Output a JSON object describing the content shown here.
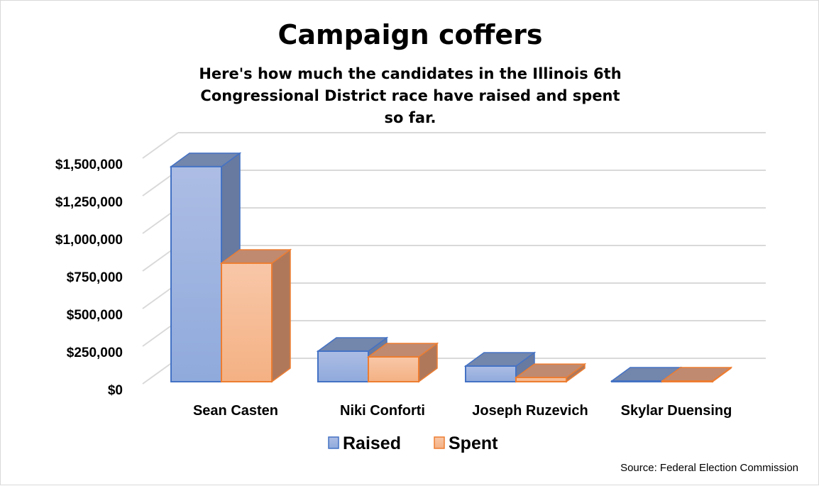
{
  "chart_data": {
    "type": "bar",
    "title": "Campaign coffers",
    "subtitle": "Here's how much the candidates in the Illinois 6th Congressional District race have raised and spent so far.",
    "categories": [
      "Sean Casten",
      "Niki Conforti",
      "Joseph Ruzevich",
      "Skylar Duensing"
    ],
    "series": [
      {
        "name": "Raised",
        "values": [
          1430000,
          203000,
          104000,
          0
        ],
        "color": "#8faadc",
        "edge": "#4472c4"
      },
      {
        "name": "Spent",
        "values": [
          788000,
          165000,
          28000,
          0
        ],
        "color": "#f4b183",
        "edge": "#ed7d31"
      }
    ],
    "yticks": [
      "$0",
      "$250,000",
      "$500,000",
      "$750,000",
      "$1,000,000",
      "$1,250,000",
      "$1,500,000"
    ],
    "ylim": [
      0,
      1500000
    ],
    "grid": true,
    "legend": "bottom-center",
    "source": "Source: Federal Election Commission"
  }
}
